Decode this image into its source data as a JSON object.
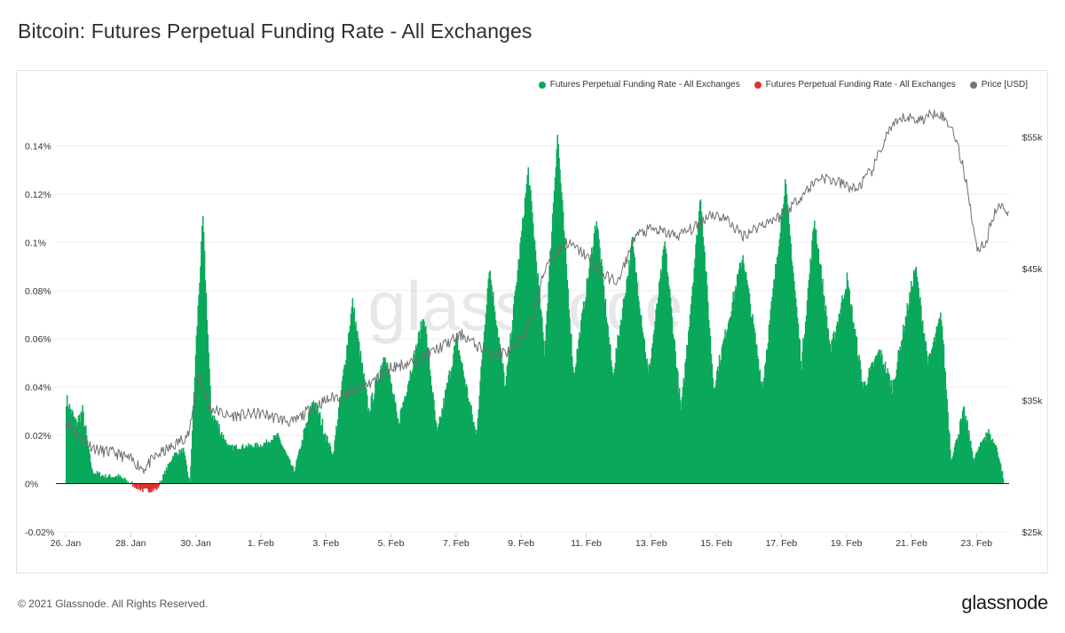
{
  "header": {
    "title": "Bitcoin: Futures Perpetual Funding Rate - All Exchanges"
  },
  "footer": {
    "copyright": "© 2021 Glassnode. All Rights Reserved.",
    "logo": "glassnode"
  },
  "watermark": "glassnode",
  "colors": {
    "positive": "#0aa85a",
    "negative": "#e0302e",
    "price": "#6f6f6f",
    "grid": "#eeeeee"
  },
  "chart_data": {
    "type": "area",
    "legend_placement": "top-right",
    "grid": true,
    "legend": [
      {
        "label": "Futures Perpetual Funding Rate - All Exchanges",
        "color": "#0aa85a"
      },
      {
        "label": "Futures Perpetual Funding Rate - All Exchanges",
        "color": "#e0302e"
      },
      {
        "label": "Price [USD]",
        "color": "#777777"
      }
    ],
    "x_ticks": [
      "26. Jan",
      "28. Jan",
      "30. Jan",
      "1. Feb",
      "3. Feb",
      "5. Feb",
      "7. Feb",
      "9. Feb",
      "11. Feb",
      "13. Feb",
      "15. Feb",
      "17. Feb",
      "19. Feb",
      "21. Feb",
      "23. Feb"
    ],
    "x_range_days_from_jan26": [
      -0.3,
      29.0
    ],
    "y_left": {
      "ticks": [
        "-0.02%",
        "0%",
        "0.02%",
        "0.04%",
        "0.06%",
        "0.08%",
        "0.1%",
        "0.12%",
        "0.14%"
      ],
      "range": [
        -0.02,
        0.16
      ]
    },
    "y_right": {
      "ticks": [
        "$25k",
        "$35k",
        "$45k",
        "$55k"
      ],
      "range": [
        25000,
        58000
      ]
    },
    "series": [
      {
        "name": "Futures Perpetual Funding Rate - All Exchanges",
        "unit": "%",
        "anchors": [
          [
            0,
            0.035
          ],
          [
            0.3,
            0.025
          ],
          [
            0.5,
            0.03
          ],
          [
            0.8,
            0.005
          ],
          [
            1.2,
            0.003
          ],
          [
            1.6,
            0.003
          ],
          [
            2,
            0.0
          ],
          [
            2.4,
            -0.003
          ],
          [
            2.8,
            -0.002
          ],
          [
            3.3,
            0.012
          ],
          [
            3.6,
            0.014
          ],
          [
            3.8,
            0.0
          ],
          [
            4.0,
            0.06
          ],
          [
            4.2,
            0.11
          ],
          [
            4.45,
            0.03
          ],
          [
            5,
            0.015
          ],
          [
            6,
            0.016
          ],
          [
            6.5,
            0.02
          ],
          [
            7,
            0.005
          ],
          [
            7.6,
            0.035
          ],
          [
            8.2,
            0.012
          ],
          [
            8.8,
            0.075
          ],
          [
            9.3,
            0.03
          ],
          [
            9.8,
            0.055
          ],
          [
            10.2,
            0.025
          ],
          [
            11,
            0.07
          ],
          [
            11.4,
            0.02
          ],
          [
            12,
            0.06
          ],
          [
            12.6,
            0.02
          ],
          [
            13,
            0.09
          ],
          [
            13.5,
            0.04
          ],
          [
            14.2,
            0.13
          ],
          [
            14.7,
            0.055
          ],
          [
            15.1,
            0.145
          ],
          [
            15.6,
            0.045
          ],
          [
            16.3,
            0.11
          ],
          [
            16.8,
            0.045
          ],
          [
            17.4,
            0.1
          ],
          [
            17.9,
            0.045
          ],
          [
            18.4,
            0.1
          ],
          [
            18.9,
            0.03
          ],
          [
            19.5,
            0.12
          ],
          [
            19.9,
            0.04
          ],
          [
            20.8,
            0.095
          ],
          [
            21.4,
            0.04
          ],
          [
            22.1,
            0.125
          ],
          [
            22.6,
            0.05
          ],
          [
            23,
            0.11
          ],
          [
            23.5,
            0.055
          ],
          [
            24,
            0.085
          ],
          [
            24.5,
            0.04
          ],
          [
            25,
            0.055
          ],
          [
            25.4,
            0.04
          ],
          [
            26.1,
            0.09
          ],
          [
            26.5,
            0.05
          ],
          [
            26.9,
            0.07
          ],
          [
            27.2,
            0.01
          ],
          [
            27.6,
            0.03
          ],
          [
            27.9,
            0.01
          ],
          [
            28.3,
            0.022
          ],
          [
            28.6,
            0.015
          ],
          [
            28.8,
            0.003
          ]
        ]
      },
      {
        "name": "Price [USD]",
        "unit": "USD",
        "anchors": [
          [
            0,
            33500
          ],
          [
            0.5,
            32000
          ],
          [
            1,
            31200
          ],
          [
            1.5,
            31000
          ],
          [
            2,
            30500
          ],
          [
            2.4,
            29800
          ],
          [
            2.8,
            30800
          ],
          [
            3.3,
            31500
          ],
          [
            3.8,
            32500
          ],
          [
            4.1,
            37000
          ],
          [
            4.4,
            34500
          ],
          [
            5,
            33800
          ],
          [
            6,
            34000
          ],
          [
            7,
            33300
          ],
          [
            7.6,
            34500
          ],
          [
            8.2,
            35200
          ],
          [
            8.8,
            35600
          ],
          [
            9.5,
            36500
          ],
          [
            10,
            37500
          ],
          [
            10.8,
            38000
          ],
          [
            11.5,
            39000
          ],
          [
            12.2,
            40000
          ],
          [
            12.6,
            39200
          ],
          [
            13.2,
            38500
          ],
          [
            13.8,
            38800
          ],
          [
            14.3,
            41000
          ],
          [
            14.8,
            45500
          ],
          [
            15.4,
            47000
          ],
          [
            16.0,
            46000
          ],
          [
            16.5,
            44500
          ],
          [
            17.0,
            44000
          ],
          [
            17.5,
            47500
          ],
          [
            18.0,
            48000
          ],
          [
            18.8,
            47500
          ],
          [
            19.4,
            48200
          ],
          [
            19.8,
            49200
          ],
          [
            20.3,
            48800
          ],
          [
            20.8,
            47500
          ],
          [
            21.5,
            48500
          ],
          [
            22.0,
            49000
          ],
          [
            22.6,
            50500
          ],
          [
            23.2,
            52000
          ],
          [
            23.8,
            51500
          ],
          [
            24.3,
            51000
          ],
          [
            24.8,
            52500
          ],
          [
            25.3,
            55500
          ],
          [
            25.8,
            56500
          ],
          [
            26.3,
            56300
          ],
          [
            26.8,
            57000
          ],
          [
            27.3,
            55500
          ],
          [
            27.7,
            51500
          ],
          [
            28.0,
            46500
          ],
          [
            28.3,
            47000
          ],
          [
            28.5,
            49000
          ],
          [
            28.8,
            50000
          ],
          [
            29.0,
            49000
          ]
        ]
      }
    ]
  }
}
